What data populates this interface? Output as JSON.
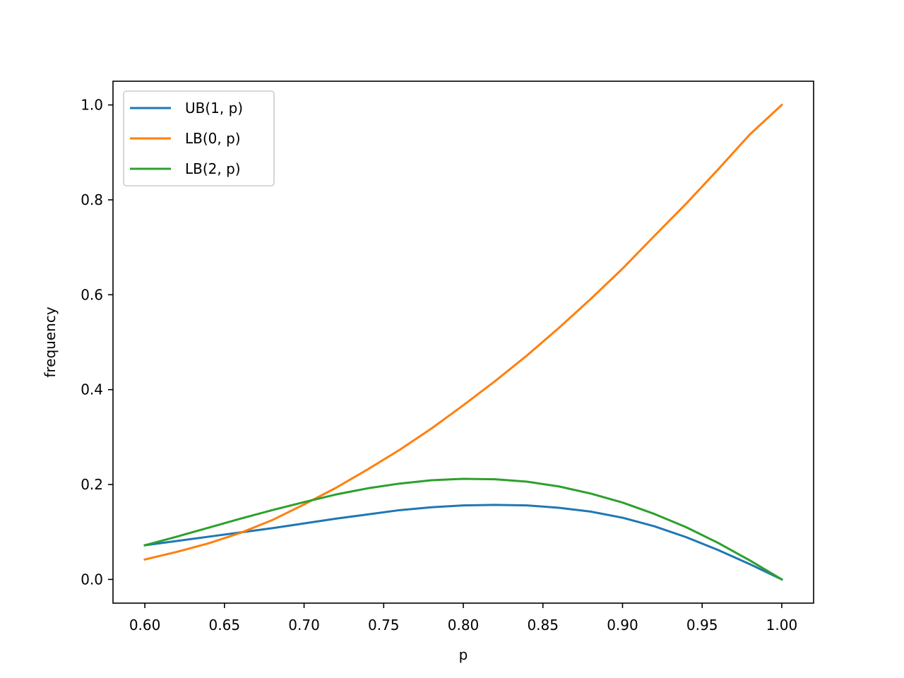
{
  "chart_data": {
    "type": "line",
    "title": "",
    "xlabel": "p",
    "ylabel": "frequency",
    "xlim": [
      0.58,
      1.02
    ],
    "ylim": [
      -0.05,
      1.05
    ],
    "xticks": [
      0.6,
      0.65,
      0.7,
      0.75,
      0.8,
      0.85,
      0.9,
      0.95,
      1.0
    ],
    "xtick_labels": [
      "0.60",
      "0.65",
      "0.70",
      "0.75",
      "0.80",
      "0.85",
      "0.90",
      "0.95",
      "1.00"
    ],
    "yticks": [
      0.0,
      0.2,
      0.4,
      0.6,
      0.8,
      1.0
    ],
    "ytick_labels": [
      "0.0",
      "0.2",
      "0.4",
      "0.6",
      "0.8",
      "1.0"
    ],
    "grid": false,
    "legend_position": "top-left",
    "series": [
      {
        "name": "UB(1, p)",
        "color": "#1f77b4",
        "x": [
          0.6,
          0.62,
          0.64,
          0.66,
          0.68,
          0.7,
          0.72,
          0.74,
          0.76,
          0.78,
          0.8,
          0.82,
          0.84,
          0.86,
          0.88,
          0.9,
          0.92,
          0.94,
          0.96,
          0.98,
          1.0
        ],
        "y": [
          0.072,
          0.081,
          0.09,
          0.099,
          0.108,
          0.118,
          0.128,
          0.137,
          0.146,
          0.152,
          0.156,
          0.157,
          0.156,
          0.151,
          0.143,
          0.13,
          0.112,
          0.089,
          0.062,
          0.032,
          0.0
        ]
      },
      {
        "name": "LB(0, p)",
        "color": "#ff7f0e",
        "x": [
          0.6,
          0.62,
          0.64,
          0.66,
          0.68,
          0.7,
          0.72,
          0.74,
          0.76,
          0.78,
          0.8,
          0.82,
          0.84,
          0.86,
          0.88,
          0.9,
          0.92,
          0.94,
          0.96,
          0.98,
          1.0
        ],
        "y": [
          0.042,
          0.058,
          0.076,
          0.098,
          0.125,
          0.158,
          0.193,
          0.232,
          0.273,
          0.318,
          0.367,
          0.418,
          0.472,
          0.53,
          0.591,
          0.655,
          0.724,
          0.792,
          0.864,
          0.938,
          1.0
        ]
      },
      {
        "name": "LB(2, p)",
        "color": "#2ca02c",
        "x": [
          0.6,
          0.62,
          0.64,
          0.66,
          0.68,
          0.7,
          0.72,
          0.74,
          0.76,
          0.78,
          0.8,
          0.82,
          0.84,
          0.86,
          0.88,
          0.9,
          0.92,
          0.94,
          0.96,
          0.98,
          1.0
        ],
        "y": [
          0.072,
          0.09,
          0.109,
          0.128,
          0.146,
          0.163,
          0.179,
          0.192,
          0.202,
          0.209,
          0.212,
          0.211,
          0.206,
          0.196,
          0.181,
          0.162,
          0.138,
          0.11,
          0.077,
          0.04,
          0.0
        ]
      }
    ]
  }
}
